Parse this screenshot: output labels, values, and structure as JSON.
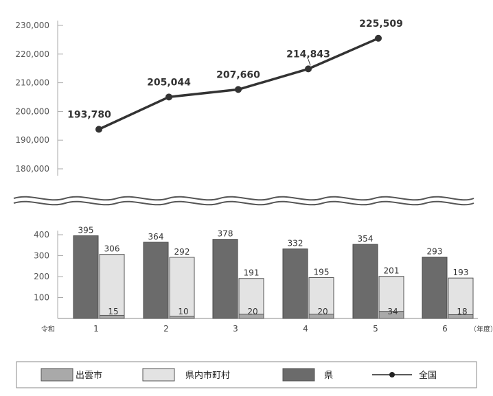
{
  "chart_data": [
    {
      "type": "line",
      "x": [
        "1",
        "2",
        "3",
        "4",
        "5"
      ],
      "values": [
        193780,
        205044,
        207660,
        214843,
        225509
      ],
      "data_labels": [
        "193,780",
        "205,044",
        "207,660",
        "214,843",
        "225,509"
      ],
      "yticks": [
        "180,000",
        "190,000",
        "200,000",
        "210,000",
        "220,000",
        "230,000"
      ],
      "ylim": [
        180000,
        230000
      ],
      "series_name": "全国",
      "color": "#333333",
      "axis_break": true
    },
    {
      "type": "bar",
      "categories": [
        "1",
        "2",
        "3",
        "4",
        "5",
        "6"
      ],
      "era_label": "令和",
      "unit_label": "（年度）",
      "yticks": [
        "100",
        "200",
        "300",
        "400"
      ],
      "ylim": [
        0,
        400
      ],
      "series": [
        {
          "name": "県",
          "values": [
            395,
            364,
            378,
            332,
            354,
            293
          ],
          "color": "#6b6b6b"
        },
        {
          "name": "県内市町村",
          "values": [
            306,
            292,
            191,
            195,
            201,
            193
          ],
          "color": "#e3e3e3"
        },
        {
          "name": "出雲市",
          "values": [
            15,
            10,
            20,
            20,
            34,
            18
          ],
          "color": "#a9a9a9"
        }
      ],
      "note": "出雲市 is drawn inside the 県内市町村 bar"
    }
  ],
  "legend": {
    "items": [
      {
        "label": "出雲市",
        "kind": "box",
        "color": "#a9a9a9"
      },
      {
        "label": "県内市町村",
        "kind": "box",
        "color": "#e3e3e3"
      },
      {
        "label": "県",
        "kind": "box",
        "color": "#6b6b6b"
      },
      {
        "label": "全国",
        "kind": "line-marker",
        "color": "#222222"
      }
    ]
  }
}
